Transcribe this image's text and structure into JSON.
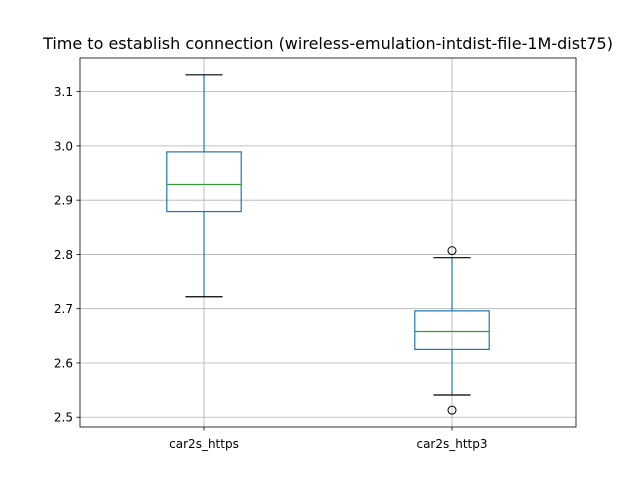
{
  "chart_data": {
    "type": "box",
    "title": "Time to establish connection (wireless-emulation-intdist-file-1M-dist75)",
    "xlabel": "",
    "ylabel": "",
    "ylim": [
      2.482,
      3.162
    ],
    "yticks": [
      2.5,
      2.6,
      2.7,
      2.8,
      2.9,
      3.0,
      3.1
    ],
    "ytick_labels": [
      "2.5",
      "2.6",
      "2.7",
      "2.8",
      "2.9",
      "3.0",
      "3.1"
    ],
    "grid": true,
    "categories": [
      "car2s_https",
      "car2s_http3"
    ],
    "series": [
      {
        "whisker_low": 2.722,
        "q1": 2.879,
        "median": 2.929,
        "q3": 2.989,
        "whisker_high": 3.131,
        "outliers": []
      },
      {
        "whisker_low": 2.541,
        "q1": 2.625,
        "median": 2.658,
        "q3": 2.696,
        "whisker_high": 2.794,
        "outliers": [
          2.807,
          2.513
        ]
      }
    ],
    "colors": {
      "box": "#1f77b4",
      "median": "#2ca02c",
      "whisker_cap": "#000000",
      "grid": "#b0b0b0",
      "outlier": "#000000"
    }
  }
}
